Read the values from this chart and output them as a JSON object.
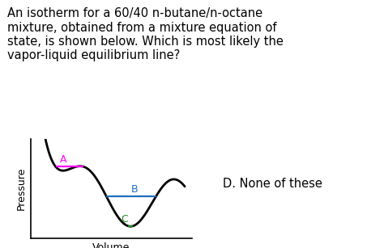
{
  "question_text": "An isotherm for a 60/40 n-butane/n-octane\nmixture, obtained from a mixture equation of\nstate, is shown below. Which is most likely the\nvapor-liquid equilibrium line?",
  "question_fontsize": 10.5,
  "background_color": "#ffffff",
  "ylabel": "Pressure",
  "xlabel": "Volume",
  "label_fontsize": 9,
  "line_A_color": "#ff00ff",
  "line_B_color": "#1f6fbf",
  "line_C_color": "#228B22",
  "annotation_A": "A",
  "annotation_B": "B",
  "annotation_C": "C",
  "note_text": "D. None of these",
  "note_fontsize": 10.5,
  "curve_color": "#000000",
  "axis_color": "#000000"
}
